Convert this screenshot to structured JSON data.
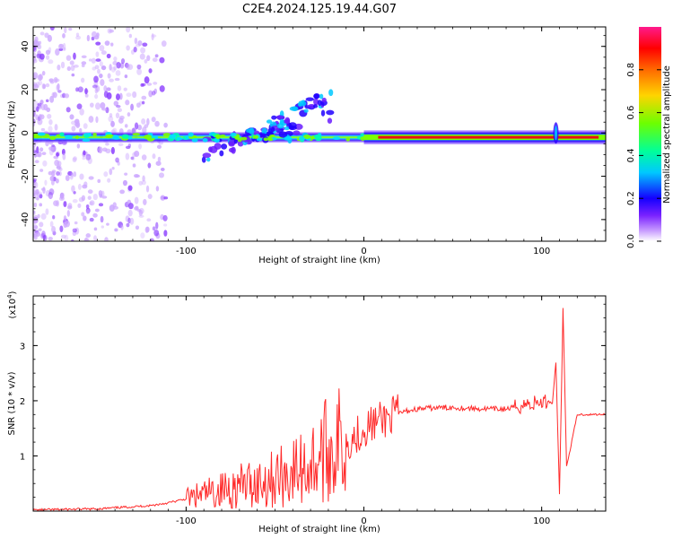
{
  "title": "C2E4.2024.125.19.44.G07",
  "top_panel": {
    "ylabel": "Frequency (Hz)",
    "xlabel": "Height of straight line (km)",
    "colorbar_label": "Normalized spectral amplitude"
  },
  "bottom_panel": {
    "ylabel": "SNR (10 * v/v)",
    "exponent_label": "(x10",
    "exponent_power": "4",
    "exponent_close": ")",
    "xlabel": "Height of straight line (km)"
  },
  "chart_data": [
    {
      "type": "heatmap",
      "title": "C2E4.2024.125.19.44.G07",
      "xlabel": "Height of straight line (km)",
      "ylabel": "Frequency (Hz)",
      "xlim": [
        -186,
        136
      ],
      "ylim": [
        -50,
        49
      ],
      "x_ticks": [
        -100,
        0,
        100
      ],
      "y_ticks": [
        -40,
        -20,
        0,
        20,
        40
      ],
      "colorbar": {
        "label": "Normalized spectral amplitude",
        "range": [
          0,
          1
        ],
        "ticks": [
          0.0,
          0.2,
          0.4,
          0.6,
          0.8
        ],
        "colors": [
          "#ffffff",
          "#b06cff",
          "#5500ff",
          "#0000ff",
          "#00c8ff",
          "#00ff7a",
          "#7cff00",
          "#ffd400",
          "#ff6600",
          "#ff0000",
          "#ff1a8c"
        ]
      },
      "ridge": {
        "frequency_hz": -2,
        "x_start_km": -186,
        "x_end_km": 136,
        "strong_from_km": 0,
        "branch_start_km": -90,
        "branch_end_km": -18,
        "branch_freq_start_hz": -12,
        "branch_freq_end_hz": 18
      }
    },
    {
      "type": "line",
      "xlabel": "Height of straight line (km)",
      "ylabel": "SNR (10 * v/v)",
      "ylabel_multiplier": "x10^4",
      "xlim": [
        -186,
        136
      ],
      "ylim": [
        0,
        3.9
      ],
      "x_ticks": [
        -100,
        0,
        100
      ],
      "y_ticks": [
        1,
        2,
        3
      ],
      "series": [
        {
          "color": "#ff2a2a",
          "x": [
            -186,
            -170,
            -150,
            -130,
            -120,
            -110,
            -100,
            -90,
            -80,
            -70,
            -60,
            -50,
            -40,
            -30,
            -25,
            -20,
            -15,
            -10,
            -5,
            0,
            5,
            10,
            15,
            20,
            25,
            30,
            40,
            50,
            60,
            70,
            80,
            85,
            90,
            95,
            100,
            104,
            106,
            108,
            110,
            112,
            114,
            120,
            130,
            136
          ],
          "y": [
            0.02,
            0.03,
            0.04,
            0.08,
            0.1,
            0.15,
            0.22,
            0.3,
            0.38,
            0.45,
            0.52,
            0.6,
            0.7,
            0.85,
            1.0,
            1.1,
            1.2,
            1.25,
            1.35,
            1.5,
            1.58,
            1.65,
            1.72,
            1.78,
            1.82,
            1.85,
            1.87,
            1.88,
            1.86,
            1.85,
            1.85,
            1.88,
            1.93,
            1.95,
            1.97,
            1.99,
            1.95,
            2.7,
            0.3,
            3.7,
            0.8,
            1.75,
            1.75,
            1.76
          ]
        }
      ]
    }
  ]
}
